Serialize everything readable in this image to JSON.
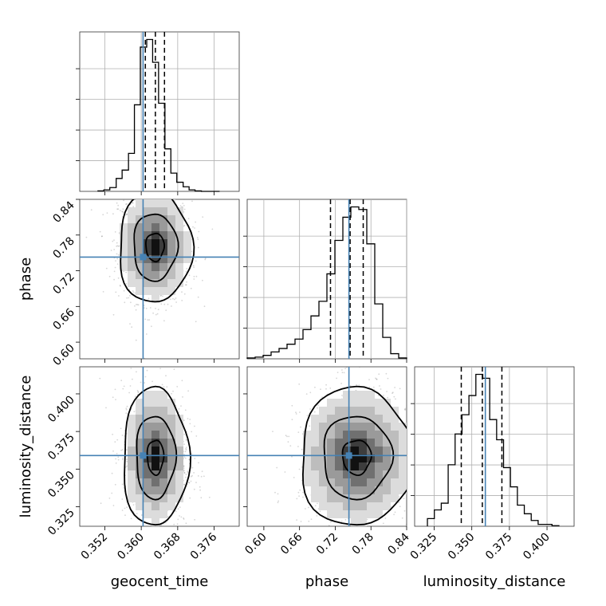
{
  "chart_data": {
    "type": "corner",
    "parameters": [
      "geocent_time",
      "phase",
      "luminosity_distance"
    ],
    "ranges": {
      "geocent_time": [
        0.3465,
        0.3815
      ],
      "phase": [
        0.572,
        0.84
      ],
      "luminosity_distance": [
        0.312,
        0.418
      ]
    },
    "ticks": {
      "geocent_time": [
        "0.352",
        "0.360",
        "0.368",
        "0.376"
      ],
      "phase": [
        "0.60",
        "0.66",
        "0.72",
        "0.78",
        "0.84"
      ],
      "luminosity_distance": [
        "0.325",
        "0.350",
        "0.375",
        "0.400"
      ]
    },
    "truths": {
      "geocent_time": 0.3604,
      "phase": 0.743,
      "luminosity_distance": 0.359
    },
    "quantiles": {
      "geocent_time": [
        0.3609,
        0.3631,
        0.3651
      ],
      "phase": [
        0.712,
        0.745,
        0.767
      ],
      "luminosity_distance": [
        0.343,
        0.357,
        0.37
      ]
    },
    "histograms": {
      "geocent_time": {
        "edges": [
          0.3505,
          0.3518,
          0.3531,
          0.3545,
          0.3558,
          0.3572,
          0.3585,
          0.3598,
          0.3612,
          0.3625,
          0.3638,
          0.3652,
          0.3665,
          0.3678,
          0.3692,
          0.3705,
          0.3718,
          0.3732,
          0.3745,
          0.3758,
          0.3772
        ],
        "counts": [
          0.3,
          1.0,
          2.5,
          8.5,
          14.0,
          25.0,
          57.0,
          95.0,
          100.0,
          85.0,
          58.0,
          28.0,
          12.0,
          6.0,
          3.0,
          1.0,
          0.3,
          0.0,
          0.0,
          0.0
        ]
      },
      "phase": {
        "edges": [
          0.572,
          0.5854,
          0.5988,
          0.6122,
          0.6256,
          0.639,
          0.6524,
          0.6658,
          0.6792,
          0.6926,
          0.706,
          0.7194,
          0.7328,
          0.7462,
          0.7596,
          0.773,
          0.7864,
          0.7998,
          0.8132,
          0.8266,
          0.84
        ],
        "counts": [
          0.5,
          1.0,
          2.0,
          4.0,
          6.0,
          8.5,
          11.5,
          17.0,
          25.0,
          33.5,
          49.5,
          69.0,
          82.5,
          88.5,
          87.0,
          67.0,
          32.0,
          12.5,
          3.0,
          0.5
        ]
      },
      "luminosity_distance": {
        "edges": [
          0.3205,
          0.3251,
          0.3297,
          0.3343,
          0.3389,
          0.3435,
          0.3481,
          0.3527,
          0.3573,
          0.3619,
          0.3665,
          0.3711,
          0.3757,
          0.3803,
          0.3849,
          0.3895,
          0.3941,
          0.3987,
          0.4033,
          0.4079
        ],
        "counts": [
          4.0,
          8.5,
          12.0,
          32.0,
          48.0,
          58.0,
          68.0,
          79.0,
          77.0,
          55.5,
          45.0,
          30.5,
          20.5,
          11.0,
          6.5,
          3.0,
          1.0,
          1.0,
          0.3
        ]
      }
    },
    "contours_2d": {
      "phase_vs_geocent_time": {
        "center": [
          0.363,
          0.76
        ],
        "sigma": [
          0.004,
          0.047
        ],
        "levels": [
          0.5,
          1.2,
          2.0
        ]
      },
      "luminosity_distance_vs_geocent_time": {
        "center": [
          0.3631,
          0.358
        ],
        "sigma": [
          0.0036,
          0.023
        ],
        "levels": [
          0.5,
          1.2,
          2.0
        ]
      },
      "luminosity_distance_vs_phase": {
        "center": [
          0.756,
          0.358
        ],
        "sigma": [
          0.048,
          0.023
        ],
        "levels": [
          0.5,
          1.2,
          2.0
        ]
      }
    }
  }
}
